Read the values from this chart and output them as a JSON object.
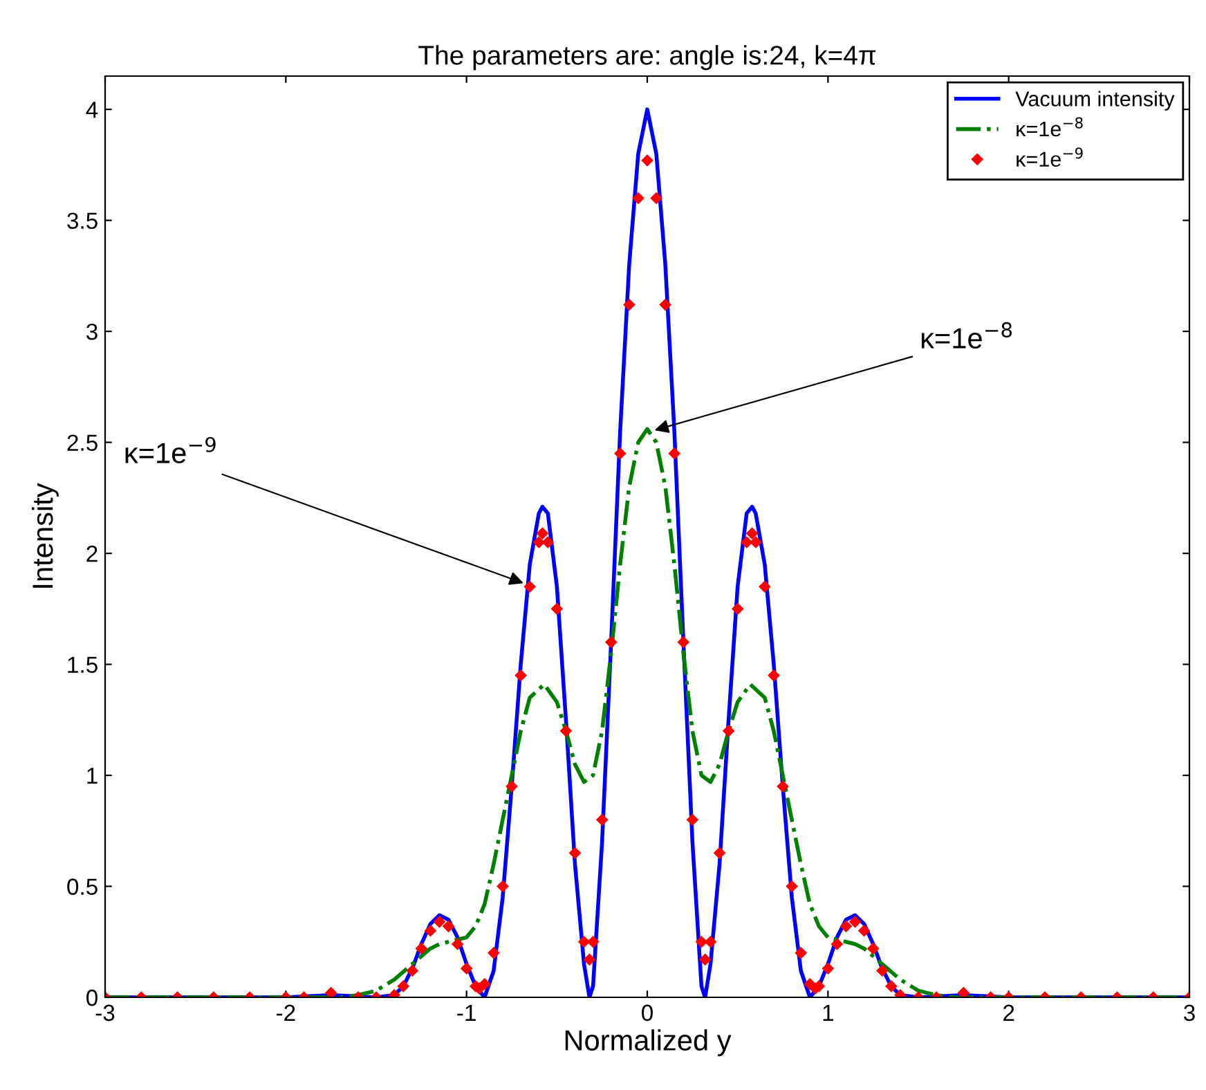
{
  "chart_data": {
    "type": "line",
    "title": "The parameters are: angle is:24, k=4π",
    "xlabel": "Normalized y",
    "ylabel": "Intensity",
    "xlim": [
      -3,
      3
    ],
    "xticks": [
      -3,
      -2,
      -1,
      0,
      1,
      2,
      3
    ],
    "ylim": [
      0,
      4.15
    ],
    "yticks": [
      0,
      0.5,
      1,
      1.5,
      2,
      2.5,
      3,
      3.5,
      4
    ],
    "grid": false,
    "legend": "top right",
    "series": [
      {
        "name": "Vacuum intensity",
        "color": "#0000ff",
        "line_style": "solid",
        "marker": "none",
        "x": [
          -3,
          -2,
          -1.75,
          -1.5,
          -1.4,
          -1.35,
          -1.3,
          -1.25,
          -1.2,
          -1.15,
          -1.1,
          -1.05,
          -1.0,
          -0.95,
          -0.9,
          -0.85,
          -0.8,
          -0.75,
          -0.7,
          -0.65,
          -0.6,
          -0.58,
          -0.55,
          -0.5,
          -0.45,
          -0.4,
          -0.35,
          -0.32,
          -0.3,
          -0.25,
          -0.2,
          -0.15,
          -0.1,
          -0.05,
          0,
          0.05,
          0.1,
          0.15,
          0.2,
          0.25,
          0.3,
          0.32,
          0.35,
          0.4,
          0.45,
          0.5,
          0.55,
          0.58,
          0.6,
          0.65,
          0.7,
          0.75,
          0.8,
          0.85,
          0.9,
          0.95,
          1.0,
          1.05,
          1.1,
          1.15,
          1.2,
          1.25,
          1.3,
          1.35,
          1.4,
          1.5,
          1.75,
          2,
          3
        ],
        "values": [
          0,
          0,
          0.01,
          0,
          0.01,
          0.05,
          0.13,
          0.24,
          0.33,
          0.37,
          0.35,
          0.27,
          0.15,
          0.05,
          0,
          0.12,
          0.45,
          0.95,
          1.5,
          1.95,
          2.18,
          2.21,
          2.18,
          1.85,
          1.25,
          0.6,
          0.15,
          0,
          0.05,
          0.7,
          1.6,
          2.55,
          3.3,
          3.8,
          4.0,
          3.8,
          3.3,
          2.55,
          1.6,
          0.7,
          0.05,
          0,
          0.15,
          0.6,
          1.25,
          1.85,
          2.18,
          2.21,
          2.18,
          1.95,
          1.5,
          0.95,
          0.45,
          0.12,
          0,
          0.05,
          0.15,
          0.27,
          0.35,
          0.37,
          0.33,
          0.24,
          0.13,
          0.05,
          0.01,
          0,
          0.01,
          0,
          0
        ]
      },
      {
        "name": "κ=1e$^{−8}$",
        "color": "#008000",
        "line_style": "dashdot",
        "marker": "none",
        "x": [
          -3,
          -2,
          -1.7,
          -1.6,
          -1.5,
          -1.4,
          -1.3,
          -1.2,
          -1.15,
          -1.1,
          -1.0,
          -0.95,
          -0.9,
          -0.85,
          -0.8,
          -0.75,
          -0.7,
          -0.65,
          -0.57,
          -0.5,
          -0.45,
          -0.4,
          -0.35,
          -0.3,
          -0.25,
          -0.2,
          -0.15,
          -0.1,
          -0.05,
          0,
          0.05,
          0.1,
          0.15,
          0.2,
          0.25,
          0.3,
          0.35,
          0.4,
          0.45,
          0.5,
          0.57,
          0.65,
          0.7,
          0.75,
          0.8,
          0.85,
          0.9,
          0.95,
          1.0,
          1.1,
          1.15,
          1.2,
          1.3,
          1.4,
          1.5,
          1.6,
          1.7,
          2,
          3
        ],
        "values": [
          0,
          0,
          0,
          0.01,
          0.03,
          0.08,
          0.15,
          0.22,
          0.24,
          0.25,
          0.27,
          0.32,
          0.42,
          0.6,
          0.8,
          1.0,
          1.2,
          1.35,
          1.41,
          1.33,
          1.2,
          1.05,
          0.97,
          1.0,
          1.2,
          1.55,
          1.95,
          2.3,
          2.5,
          2.56,
          2.5,
          2.3,
          1.95,
          1.55,
          1.2,
          1.0,
          0.97,
          1.05,
          1.2,
          1.33,
          1.41,
          1.35,
          1.2,
          1.0,
          0.8,
          0.6,
          0.42,
          0.32,
          0.27,
          0.25,
          0.24,
          0.22,
          0.15,
          0.08,
          0.03,
          0.01,
          0,
          0,
          0
        ]
      },
      {
        "name": "κ=1e$^{−9}$",
        "color": "#ff0000",
        "type": "scatter",
        "marker": "diamond",
        "x": [
          -3,
          -2.8,
          -2.6,
          -2.4,
          -2.2,
          -2,
          -1.9,
          -1.75,
          -1.6,
          -1.5,
          -1.4,
          -1.35,
          -1.3,
          -1.25,
          -1.2,
          -1.15,
          -1.1,
          -1.05,
          -1.0,
          -0.95,
          -0.93,
          -0.9,
          -0.85,
          -0.8,
          -0.75,
          -0.7,
          -0.65,
          -0.6,
          -0.58,
          -0.55,
          -0.5,
          -0.45,
          -0.4,
          -0.35,
          -0.32,
          -0.3,
          -0.25,
          -0.2,
          -0.15,
          -0.1,
          -0.05,
          0,
          0.05,
          0.1,
          0.15,
          0.2,
          0.25,
          0.3,
          0.32,
          0.35,
          0.4,
          0.45,
          0.5,
          0.55,
          0.58,
          0.6,
          0.65,
          0.7,
          0.75,
          0.8,
          0.85,
          0.9,
          0.93,
          0.95,
          1.0,
          1.05,
          1.1,
          1.15,
          1.2,
          1.25,
          1.3,
          1.35,
          1.4,
          1.5,
          1.6,
          1.75,
          1.9,
          2,
          2.2,
          2.4,
          2.6,
          2.8,
          3
        ],
        "values": [
          0,
          0,
          0,
          0,
          0,
          0,
          0,
          0.02,
          0,
          0,
          0.01,
          0.05,
          0.12,
          0.22,
          0.3,
          0.34,
          0.32,
          0.24,
          0.13,
          0.05,
          0.04,
          0.06,
          0.2,
          0.5,
          0.95,
          1.45,
          1.85,
          2.05,
          2.09,
          2.05,
          1.75,
          1.2,
          0.65,
          0.25,
          0.17,
          0.25,
          0.8,
          1.6,
          2.45,
          3.12,
          3.6,
          3.77,
          3.6,
          3.12,
          2.45,
          1.6,
          0.8,
          0.25,
          0.17,
          0.25,
          0.65,
          1.2,
          1.75,
          2.05,
          2.09,
          2.05,
          1.85,
          1.45,
          0.95,
          0.5,
          0.2,
          0.06,
          0.04,
          0.05,
          0.13,
          0.24,
          0.32,
          0.34,
          0.3,
          0.22,
          0.12,
          0.05,
          0.01,
          0,
          0,
          0.02,
          0,
          0,
          0,
          0,
          0,
          0,
          0
        ]
      }
    ],
    "annotations": [
      {
        "text": "κ=1e$^{−8}$",
        "x": 0.02,
        "y": 2.55
      },
      {
        "text": "κ=1e$^{−9}$",
        "x": -0.665,
        "y": 1.86
      }
    ]
  }
}
